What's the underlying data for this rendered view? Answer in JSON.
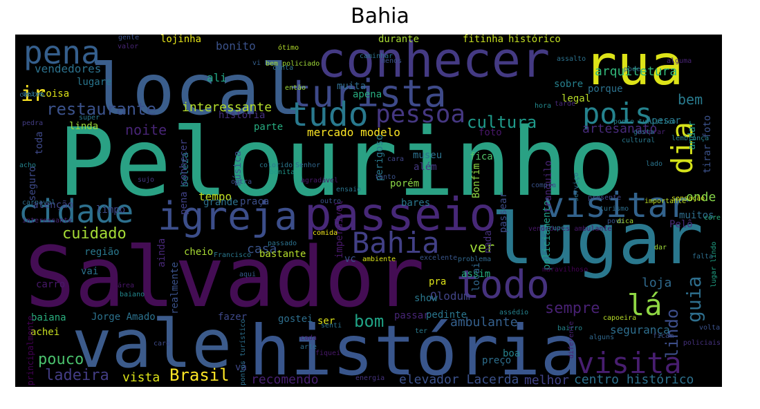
{
  "title": "Bahia",
  "words": [
    {
      "text": "Pelourinho",
      "color": "#2aa184"
    },
    {
      "text": "Salvador",
      "color": "#440d54"
    },
    {
      "text": "local",
      "color": "#3b5e8c"
    },
    {
      "text": "vale",
      "color": "#3c5b8b"
    },
    {
      "text": "história",
      "color": "#39568c"
    },
    {
      "text": "lugar",
      "color": "#2a788e"
    },
    {
      "text": "conhecer",
      "color": "#443a83"
    },
    {
      "text": "rua",
      "color": "#dde318"
    },
    {
      "text": "turista",
      "color": "#3e4a89"
    },
    {
      "text": "passeio",
      "color": "#472878"
    },
    {
      "text": "igreja",
      "color": "#3c4e8a"
    },
    {
      "text": "cidade",
      "color": "#2d708e"
    },
    {
      "text": "visitar",
      "color": "#33638d"
    },
    {
      "text": "pena",
      "color": "#355f8d"
    },
    {
      "text": "tudo",
      "color": "#29798e"
    },
    {
      "text": "pessoa",
      "color": "#453781"
    },
    {
      "text": "pois",
      "color": "#25838e"
    },
    {
      "text": "dia",
      "color": "#d5e21a"
    },
    {
      "text": "todo",
      "color": "#46327e"
    },
    {
      "text": "Bahia",
      "color": "#424086"
    },
    {
      "text": "lá",
      "color": "#8fd744"
    },
    {
      "text": "visita",
      "color": "#481e70"
    },
    {
      "text": "ir",
      "color": "#fde725"
    },
    {
      "text": "restaurante",
      "color": "#3b528b"
    },
    {
      "text": "interessante",
      "color": "#b5de2b"
    },
    {
      "text": "noite",
      "color": "#482576"
    },
    {
      "text": "cultura",
      "color": "#1f9a8a"
    },
    {
      "text": "bem",
      "color": "#297b8e"
    },
    {
      "text": "cuidado",
      "color": "#a5db36"
    },
    {
      "text": "Brasil",
      "color": "#fde725"
    },
    {
      "text": "bom",
      "color": "#20a386"
    },
    {
      "text": "sempre",
      "color": "#482173"
    },
    {
      "text": "guia",
      "color": "#2e6f8e"
    },
    {
      "text": "lindo",
      "color": "#3d4e8a"
    },
    {
      "text": "pouco",
      "color": "#4ac16d"
    },
    {
      "text": "ladeira",
      "color": "#433d84"
    },
    {
      "text": "segurança",
      "color": "#2e6e8e"
    },
    {
      "text": "artesanato",
      "color": "#472a7a"
    },
    {
      "text": "ver",
      "color": "#a0da39"
    },
    {
      "text": "onde",
      "color": "#86d549"
    },
    {
      "text": "loja",
      "color": "#306a8e"
    },
    {
      "text": "casa",
      "color": "#3a548c"
    },
    {
      "text": "elevador Lacerda",
      "color": "#3b518b"
    },
    {
      "text": "centro histórico",
      "color": "#2d718e"
    },
    {
      "text": "arquitetura",
      "color": "#32b67a"
    },
    {
      "text": "ambulante",
      "color": "#35608d"
    },
    {
      "text": "recomendo",
      "color": "#482071"
    },
    {
      "text": "vista",
      "color": "#dde318"
    },
    {
      "text": "melhor",
      "color": "#414287"
    },
    {
      "text": "tempo",
      "color": "#c2df23"
    },
    {
      "text": "Olodum",
      "color": "#414487"
    },
    {
      "text": "mercado modelo",
      "color": "#fde725"
    },
    {
      "text": "fitinha",
      "color": "#c8e020"
    },
    {
      "text": "histórico",
      "color": "#c2df23"
    },
    {
      "text": "durante",
      "color": "#a8db34"
    },
    {
      "text": "lojinha",
      "color": "#e5e419"
    },
    {
      "text": "bonito",
      "color": "#3b528b"
    },
    {
      "text": "vendedores",
      "color": "#2c728e"
    },
    {
      "text": "lugare",
      "color": "#2a768e"
    },
    {
      "text": "coisa",
      "color": "#dde318"
    },
    {
      "text": "ali",
      "color": "#22a785"
    },
    {
      "text": "muita",
      "color": "#2f6c8e"
    },
    {
      "text": "apena",
      "color": "#28ae80"
    },
    {
      "text": "parte",
      "color": "#27ad81"
    },
    {
      "text": "foto",
      "color": "#481769"
    },
    {
      "text": "fica",
      "color": "#52c569"
    },
    {
      "text": "museu",
      "color": "#2c728e"
    },
    {
      "text": "além",
      "color": "#453882"
    },
    {
      "text": "porém",
      "color": "#8bd646"
    },
    {
      "text": "perigoso",
      "color": "#2a788e"
    },
    {
      "text": "Bonfim",
      "color": "#8fd744"
    },
    {
      "text": "policiamento",
      "color": "#1fa088"
    },
    {
      "text": "passear",
      "color": "#3d4d8a"
    },
    {
      "text": "nada",
      "color": "#46307e"
    },
    {
      "text": "linda",
      "color": "#a0da39"
    },
    {
      "text": "toda",
      "color": "#3e4989"
    },
    {
      "text": "seguro",
      "color": "#3e4a89"
    },
    {
      "text": "historia",
      "color": "#46307e"
    },
    {
      "text": "legal",
      "color": "#b8de29"
    },
    {
      "text": "sobre",
      "color": "#26818e"
    },
    {
      "text": "porque",
      "color": "#2c728e"
    },
    {
      "text": "andar",
      "color": "#1f988b"
    },
    {
      "text": "Apesar",
      "color": "#2a788e"
    },
    {
      "text": "tirar foto",
      "color": "#3b528b"
    },
    {
      "text": "muitos",
      "color": "#2e6e8e"
    },
    {
      "text": "Pelô",
      "color": "#472c7a"
    },
    {
      "text": "atenção",
      "color": "#414487"
    },
    {
      "text": "limpo",
      "color": "#3e4989"
    },
    {
      "text": "grande",
      "color": "#2c718e"
    },
    {
      "text": "praça",
      "color": "#3c4f8a"
    },
    {
      "text": "bares",
      "color": "#2a788e"
    },
    {
      "text": "imperdível",
      "color": "#48186a"
    },
    {
      "text": "região",
      "color": "#2a788e"
    },
    {
      "text": "cheio",
      "color": "#a8db34"
    },
    {
      "text": "bastante",
      "color": "#b5de2b"
    },
    {
      "text": "realmente",
      "color": "#3b528b"
    },
    {
      "text": "ainda",
      "color": "#482878"
    },
    {
      "text": "beleza",
      "color": "#26828e"
    },
    {
      "text": "música",
      "color": "#3a548c"
    },
    {
      "text": "pena conhecer",
      "color": "#414287"
    },
    {
      "text": "vai",
      "color": "#2c738e"
    },
    {
      "text": "carro",
      "color": "#48186a"
    },
    {
      "text": "baiana",
      "color": "#2ab07f"
    },
    {
      "text": "Jorge Amado",
      "color": "#2c728e"
    },
    {
      "text": "achei",
      "color": "#c8e020"
    },
    {
      "text": "fazer",
      "color": "#3e4989"
    },
    {
      "text": "gostei",
      "color": "#2e6f8e"
    },
    {
      "text": "ser",
      "color": "#dde318"
    },
    {
      "text": "passar",
      "color": "#482677"
    },
    {
      "text": "pedinte",
      "color": "#2a768e"
    },
    {
      "text": "show",
      "color": "#2a788e"
    },
    {
      "text": "pra",
      "color": "#dde318"
    },
    {
      "text": "assim",
      "color": "#27ad81"
    },
    {
      "text": "locai",
      "color": "#31688e"
    },
    {
      "text": "vc",
      "color": "#3b528b"
    },
    {
      "text": "boa",
      "color": "#26828e"
    },
    {
      "text": "preço",
      "color": "#2e6f8e"
    },
    {
      "text": "vá",
      "color": "#3f4788"
    },
    {
      "text": "tranquilo",
      "color": "#482475"
    },
    {
      "text": "ótimo",
      "color": "#b5de2b"
    },
    {
      "text": "bem policiado",
      "color": "#a0da39"
    },
    {
      "text": "então",
      "color": "#9bd93c"
    },
    {
      "text": "deixe",
      "color": "#2c738e"
    },
    {
      "text": "maravilhoso",
      "color": "#440154"
    },
    {
      "text": "lado",
      "color": "#2b758e"
    },
    {
      "text": "importante",
      "color": "#bddf26"
    },
    {
      "text": "sensação",
      "color": "#d2e21b"
    },
    {
      "text": "core",
      "color": "#2ab07f"
    },
    {
      "text": "dar",
      "color": "#9fda3a"
    },
    {
      "text": "falta",
      "color": "#2e6e8e"
    },
    {
      "text": "lugar lindo",
      "color": "#20a386"
    },
    {
      "text": "volta",
      "color": "#3b528b"
    },
    {
      "text": "policiais",
      "color": "#46327e"
    },
    {
      "text": "ficam",
      "color": "#3d4e8a"
    },
    {
      "text": "alguns",
      "color": "#31688e"
    },
    {
      "text": "bairro",
      "color": "#25858e"
    },
    {
      "text": "diferente",
      "color": "#482173"
    },
    {
      "text": "capoeira",
      "color": "#b8de29"
    },
    {
      "text": "assédio",
      "color": "#26828e"
    },
    {
      "text": "senti",
      "color": "#2c728e"
    },
    {
      "text": "ter",
      "color": "#297a8e"
    },
    {
      "text": "cada",
      "color": "#482475"
    },
    {
      "text": "arte",
      "color": "#2e6e8e"
    },
    {
      "text": "fiquei",
      "color": "#48186a"
    },
    {
      "text": "energia",
      "color": "#46337f"
    },
    {
      "text": "pontos turístico",
      "color": "#2d708e"
    },
    {
      "text": "caro",
      "color": "#3e4a89"
    },
    {
      "text": "principalmente",
      "color": "#440154"
    },
    {
      "text": "área",
      "color": "#481769"
    },
    {
      "text": "baiano",
      "color": "#23888e"
    },
    {
      "text": "aqui",
      "color": "#365c8d"
    },
    {
      "text": "Francisco",
      "color": "#2a788e"
    },
    {
      "text": "ambiente",
      "color": "#d8e219"
    },
    {
      "text": "excelente",
      "color": "#39568c"
    },
    {
      "text": "problema",
      "color": "#31688e"
    },
    {
      "text": "comida",
      "color": "#f1e51d"
    },
    {
      "text": "passado",
      "color": "#2c728e"
    },
    {
      "text": "vendedores ambulante",
      "color": "#48186a"
    },
    {
      "text": "grupo",
      "color": "#25858e"
    },
    {
      "text": "povo",
      "color": "#3a548c"
    },
    {
      "text": "dica",
      "color": "#a2da37"
    },
    {
      "text": "turismo",
      "color": "#2e6f8e"
    },
    {
      "text": "presente",
      "color": "#404688"
    },
    {
      "text": "compra",
      "color": "#3a548c"
    },
    {
      "text": "serviço",
      "color": "#2d708e"
    },
    {
      "text": "tarde",
      "color": "#482878"
    },
    {
      "text": "hora",
      "color": "#23898e"
    },
    {
      "text": "cultural",
      "color": "#2a788e"
    },
    {
      "text": "comprar",
      "color": "#482071"
    },
    {
      "text": "ponto turístico",
      "color": "#26828e"
    },
    {
      "text": "pode",
      "color": "#2d708e"
    },
    {
      "text": "gosta",
      "color": "#2a768e"
    },
    {
      "text": "lembrança",
      "color": "#26828e"
    },
    {
      "text": "alguma",
      "color": "#482475"
    },
    {
      "text": "assalto",
      "color": "#2c728e"
    },
    {
      "text": "caminhar",
      "color": "#2c728e"
    },
    {
      "text": "menos",
      "color": "#3b528b"
    },
    {
      "text": "vi",
      "color": "#35608d"
    },
    {
      "text": "conta",
      "color": "#2c718e"
    },
    {
      "text": "gente",
      "color": "#3b528b"
    },
    {
      "text": "valor",
      "color": "#482677"
    },
    {
      "text": "centro",
      "color": "#2e6e8e"
    },
    {
      "text": "super",
      "color": "#29798e"
    },
    {
      "text": "pedra",
      "color": "#433d84"
    },
    {
      "text": "acho",
      "color": "#25848e"
    },
    {
      "text": "outra",
      "color": "#3c4f8a"
    },
    {
      "text": "colorido",
      "color": "#2a788e"
    },
    {
      "text": "bonita",
      "color": "#1f988b"
    },
    {
      "text": "cara",
      "color": "#404688"
    },
    {
      "text": "tanto",
      "color": "#3a538b"
    },
    {
      "text": "ensaio",
      "color": "#2b758e"
    },
    {
      "text": "Senhor",
      "color": "#31688e"
    },
    {
      "text": "agradável",
      "color": "#48186a"
    },
    {
      "text": "outro",
      "color": "#3b528b"
    },
    {
      "text": "sujo",
      "color": "#443983"
    },
    {
      "text": "carnaval",
      "color": "#2e6e8e"
    },
    {
      "text": "interessante",
      "color": "#482374"
    }
  ]
}
